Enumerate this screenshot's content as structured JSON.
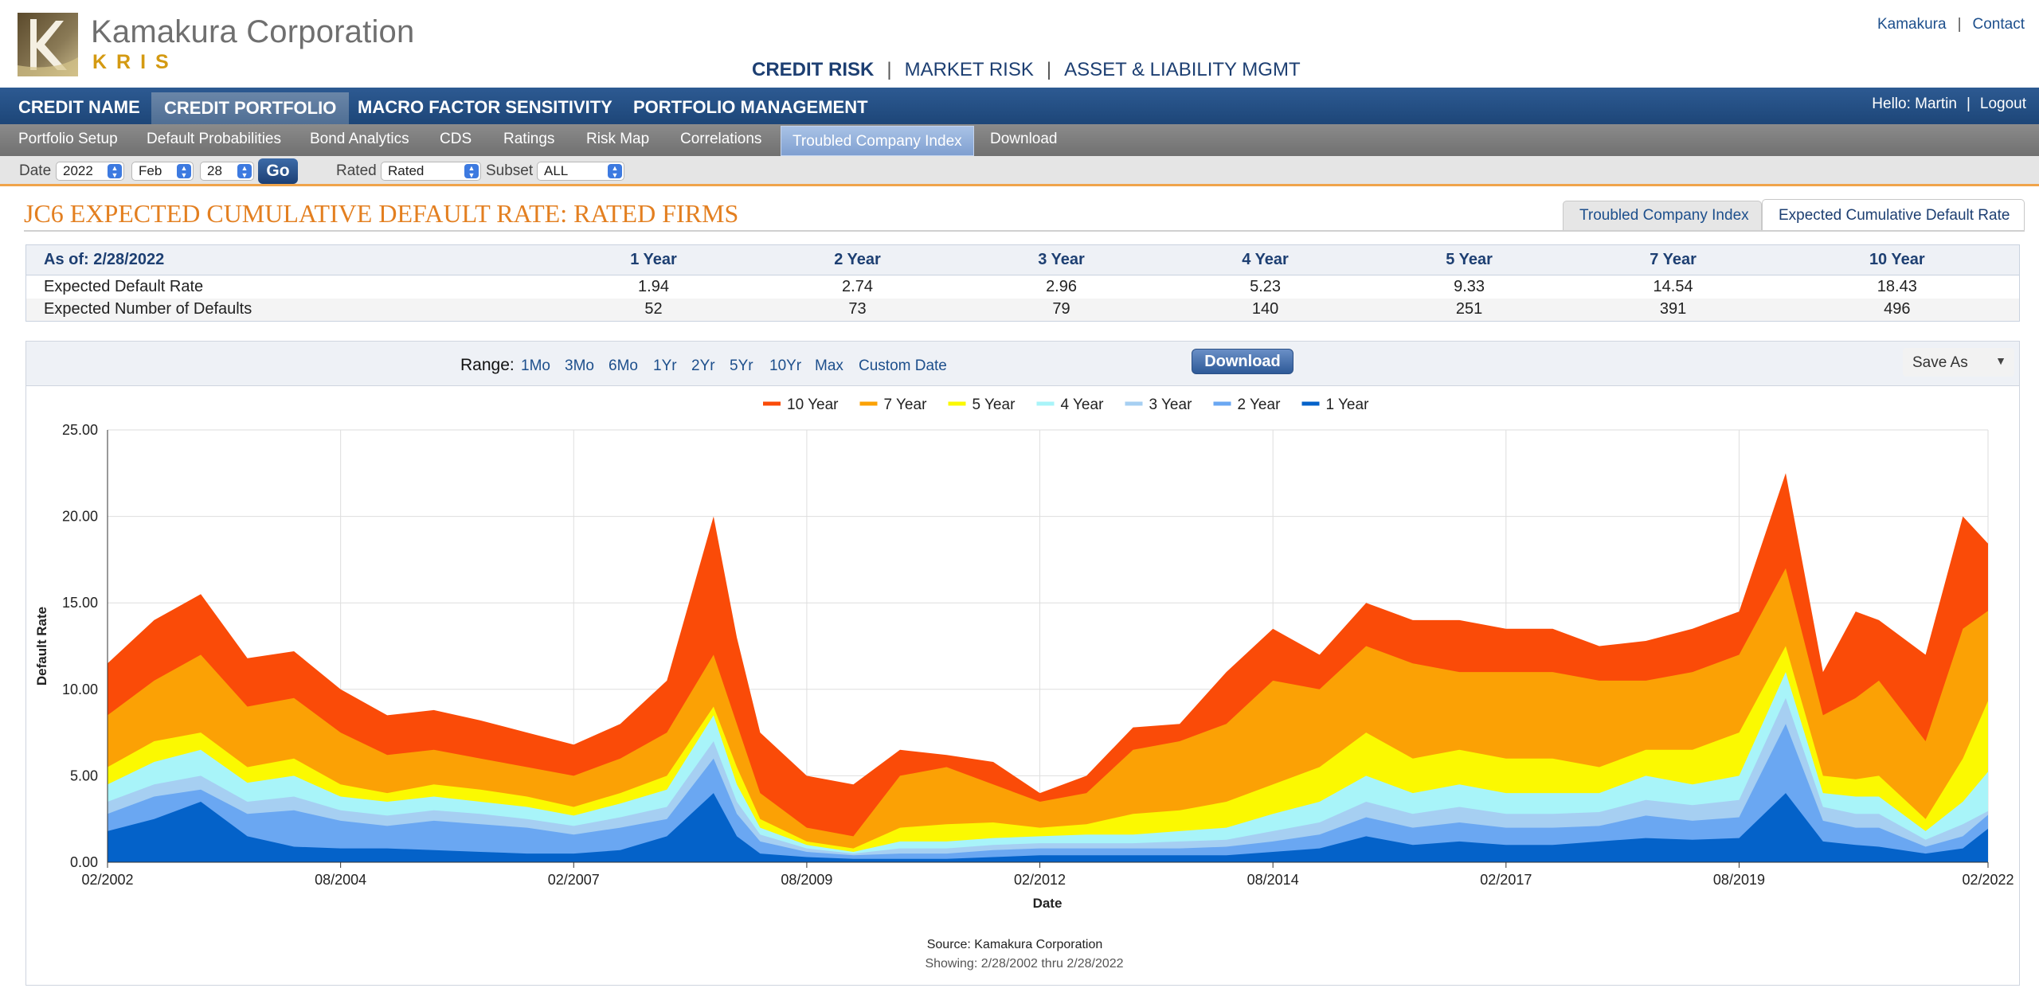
{
  "brand": {
    "name": "Kamakura Corporation",
    "product": "KRIS"
  },
  "top_links": {
    "kamakura": "Kamakura",
    "contact": "Contact"
  },
  "risk_nav": {
    "credit": "CREDIT RISK",
    "market": "MARKET RISK",
    "alm": "ASSET & LIABILITY MGMT"
  },
  "main_nav": [
    "CREDIT NAME",
    "CREDIT PORTFOLIO",
    "MACRO FACTOR SENSITIVITY",
    "PORTFOLIO MANAGEMENT"
  ],
  "user": {
    "greeting": "Hello: Martin",
    "logout": "Logout"
  },
  "sub_nav": [
    "Portfolio Setup",
    "Default Probabilities",
    "Bond Analytics",
    "CDS",
    "Ratings",
    "Risk Map",
    "Correlations",
    "Troubled Company Index",
    "Download"
  ],
  "toolbar": {
    "date_label": "Date",
    "year": "2022",
    "month": "Feb",
    "day": "28",
    "go": "Go",
    "rated_label": "Rated",
    "rated_value": "Rated",
    "subset_label": "Subset",
    "subset_value": "ALL"
  },
  "page_title": "JC6 EXPECTED CUMULATIVE DEFAULT RATE: RATED FIRMS",
  "tabs": [
    "Troubled Company Index",
    "Expected Cumulative Default Rate"
  ],
  "summary": {
    "as_of": "As of: 2/28/2022",
    "columns": [
      "1 Year",
      "2 Year",
      "3 Year",
      "4 Year",
      "5 Year",
      "7 Year",
      "10 Year"
    ],
    "rows": [
      {
        "label": "Expected Default Rate",
        "values": [
          "1.94",
          "2.74",
          "2.96",
          "5.23",
          "9.33",
          "14.54",
          "18.43"
        ]
      },
      {
        "label": "Expected Number of Defaults",
        "values": [
          "52",
          "73",
          "79",
          "140",
          "251",
          "391",
          "496"
        ]
      }
    ]
  },
  "chart_controls": {
    "range_label": "Range:",
    "ranges": [
      "1Mo",
      "3Mo",
      "6Mo",
      "1Yr",
      "2Yr",
      "5Yr",
      "10Yr",
      "Max",
      "Custom Date"
    ],
    "download": "Download",
    "save_as": "Save As"
  },
  "chart_data": {
    "type": "area",
    "xlabel": "Date",
    "ylabel": "Default Rate",
    "ylim": [
      0,
      25
    ],
    "y_ticks": [
      "0.00",
      "5.00",
      "10.00",
      "15.00",
      "20.00",
      "25.00"
    ],
    "x_ticks": [
      "02/2002",
      "08/2004",
      "02/2007",
      "08/2009",
      "02/2012",
      "08/2014",
      "02/2017",
      "08/2019",
      "02/2022"
    ],
    "legend_position": "top-center",
    "grid": true,
    "source": "Source: Kamakura Corporation",
    "showing": "Showing: 2/28/2002 thru 2/28/2022",
    "x": [
      2002.0,
      2002.5,
      2003.0,
      2003.5,
      2004.0,
      2004.5,
      2005.0,
      2005.5,
      2006.0,
      2006.5,
      2007.0,
      2007.5,
      2008.0,
      2008.5,
      2008.75,
      2009.0,
      2009.5,
      2010.0,
      2010.5,
      2011.0,
      2011.5,
      2012.0,
      2012.5,
      2013.0,
      2013.5,
      2014.0,
      2014.5,
      2015.0,
      2015.5,
      2016.0,
      2016.5,
      2017.0,
      2017.5,
      2018.0,
      2018.5,
      2019.0,
      2019.5,
      2020.0,
      2020.4,
      2020.75,
      2021.0,
      2021.5,
      2021.9,
      2022.17
    ],
    "series": [
      {
        "name": "10 Year",
        "color": "#fa4b08",
        "values": [
          11.5,
          14.0,
          15.5,
          11.8,
          12.2,
          10.0,
          8.5,
          8.8,
          8.2,
          7.5,
          6.8,
          8.0,
          10.5,
          20.0,
          13.0,
          7.5,
          5.0,
          4.5,
          6.5,
          6.2,
          5.8,
          4.0,
          5.0,
          7.8,
          8.0,
          11.0,
          13.5,
          12.0,
          15.0,
          14.0,
          14.0,
          13.5,
          13.5,
          12.5,
          12.8,
          13.5,
          14.5,
          22.5,
          11.0,
          14.5,
          14.0,
          12.0,
          20.0,
          18.43
        ]
      },
      {
        "name": "7 Year",
        "color": "#fba105",
        "values": [
          8.5,
          10.5,
          12.0,
          9.0,
          9.5,
          7.5,
          6.2,
          6.5,
          6.0,
          5.5,
          5.0,
          6.0,
          7.5,
          12.0,
          8.0,
          4.0,
          2.0,
          1.5,
          5.0,
          5.5,
          4.5,
          3.5,
          4.0,
          6.5,
          7.0,
          8.0,
          10.5,
          10.0,
          12.5,
          11.5,
          11.0,
          11.0,
          11.0,
          10.5,
          10.5,
          11.0,
          12.0,
          17.0,
          8.5,
          9.5,
          10.5,
          7.0,
          13.5,
          14.54
        ]
      },
      {
        "name": "5 Year",
        "color": "#fbf901",
        "values": [
          5.5,
          7.0,
          7.5,
          5.5,
          6.0,
          4.5,
          4.0,
          4.5,
          4.2,
          3.8,
          3.2,
          4.0,
          5.0,
          9.0,
          5.5,
          2.5,
          1.2,
          0.8,
          2.0,
          2.2,
          2.3,
          2.0,
          2.2,
          2.8,
          3.0,
          3.5,
          4.5,
          5.5,
          7.5,
          6.0,
          6.5,
          6.0,
          6.0,
          5.5,
          6.5,
          6.5,
          7.5,
          12.5,
          5.0,
          4.8,
          5.0,
          2.5,
          6.0,
          9.33
        ]
      },
      {
        "name": "4 Year",
        "color": "#a8f4f9",
        "values": [
          4.5,
          5.8,
          6.5,
          4.6,
          5.0,
          3.8,
          3.5,
          3.8,
          3.5,
          3.2,
          2.7,
          3.4,
          4.2,
          8.5,
          4.5,
          2.0,
          1.0,
          0.6,
          1.2,
          1.2,
          1.4,
          1.5,
          1.6,
          1.6,
          1.8,
          2.0,
          2.8,
          3.5,
          5.0,
          4.0,
          4.5,
          4.0,
          4.0,
          4.0,
          5.0,
          4.5,
          5.0,
          11.0,
          4.0,
          3.8,
          3.8,
          1.8,
          3.5,
          5.23
        ]
      },
      {
        "name": "3 Year",
        "color": "#a6cff2",
        "values": [
          3.5,
          4.5,
          5.0,
          3.5,
          3.8,
          3.0,
          2.7,
          3.0,
          2.8,
          2.5,
          2.1,
          2.6,
          3.2,
          7.0,
          3.5,
          1.6,
          0.8,
          0.5,
          0.8,
          0.8,
          1.0,
          1.1,
          1.1,
          1.1,
          1.2,
          1.3,
          1.8,
          2.3,
          3.5,
          2.8,
          3.2,
          2.8,
          2.8,
          2.9,
          3.6,
          3.3,
          3.6,
          9.5,
          3.2,
          2.8,
          2.8,
          1.3,
          2.2,
          2.96
        ]
      },
      {
        "name": "2 Year",
        "color": "#6aa7f2",
        "values": [
          2.8,
          3.8,
          4.2,
          2.8,
          3.0,
          2.4,
          2.1,
          2.4,
          2.2,
          2.0,
          1.6,
          2.0,
          2.5,
          6.0,
          2.8,
          1.2,
          0.6,
          0.4,
          0.5,
          0.5,
          0.7,
          0.8,
          0.8,
          0.8,
          0.8,
          0.9,
          1.2,
          1.6,
          2.6,
          2.0,
          2.3,
          2.0,
          2.0,
          2.1,
          2.7,
          2.4,
          2.6,
          8.0,
          2.4,
          2.0,
          2.0,
          0.9,
          1.5,
          2.74
        ]
      },
      {
        "name": "1 Year",
        "color": "#0462c9",
        "values": [
          1.8,
          2.5,
          3.5,
          1.5,
          0.9,
          0.8,
          0.8,
          0.7,
          0.6,
          0.5,
          0.5,
          0.7,
          1.5,
          4.0,
          1.5,
          0.5,
          0.3,
          0.2,
          0.2,
          0.2,
          0.3,
          0.4,
          0.4,
          0.4,
          0.4,
          0.4,
          0.6,
          0.8,
          1.5,
          1.0,
          1.2,
          1.0,
          1.0,
          1.2,
          1.4,
          1.3,
          1.4,
          4.0,
          1.2,
          1.0,
          0.9,
          0.5,
          0.8,
          1.94
        ]
      }
    ]
  }
}
